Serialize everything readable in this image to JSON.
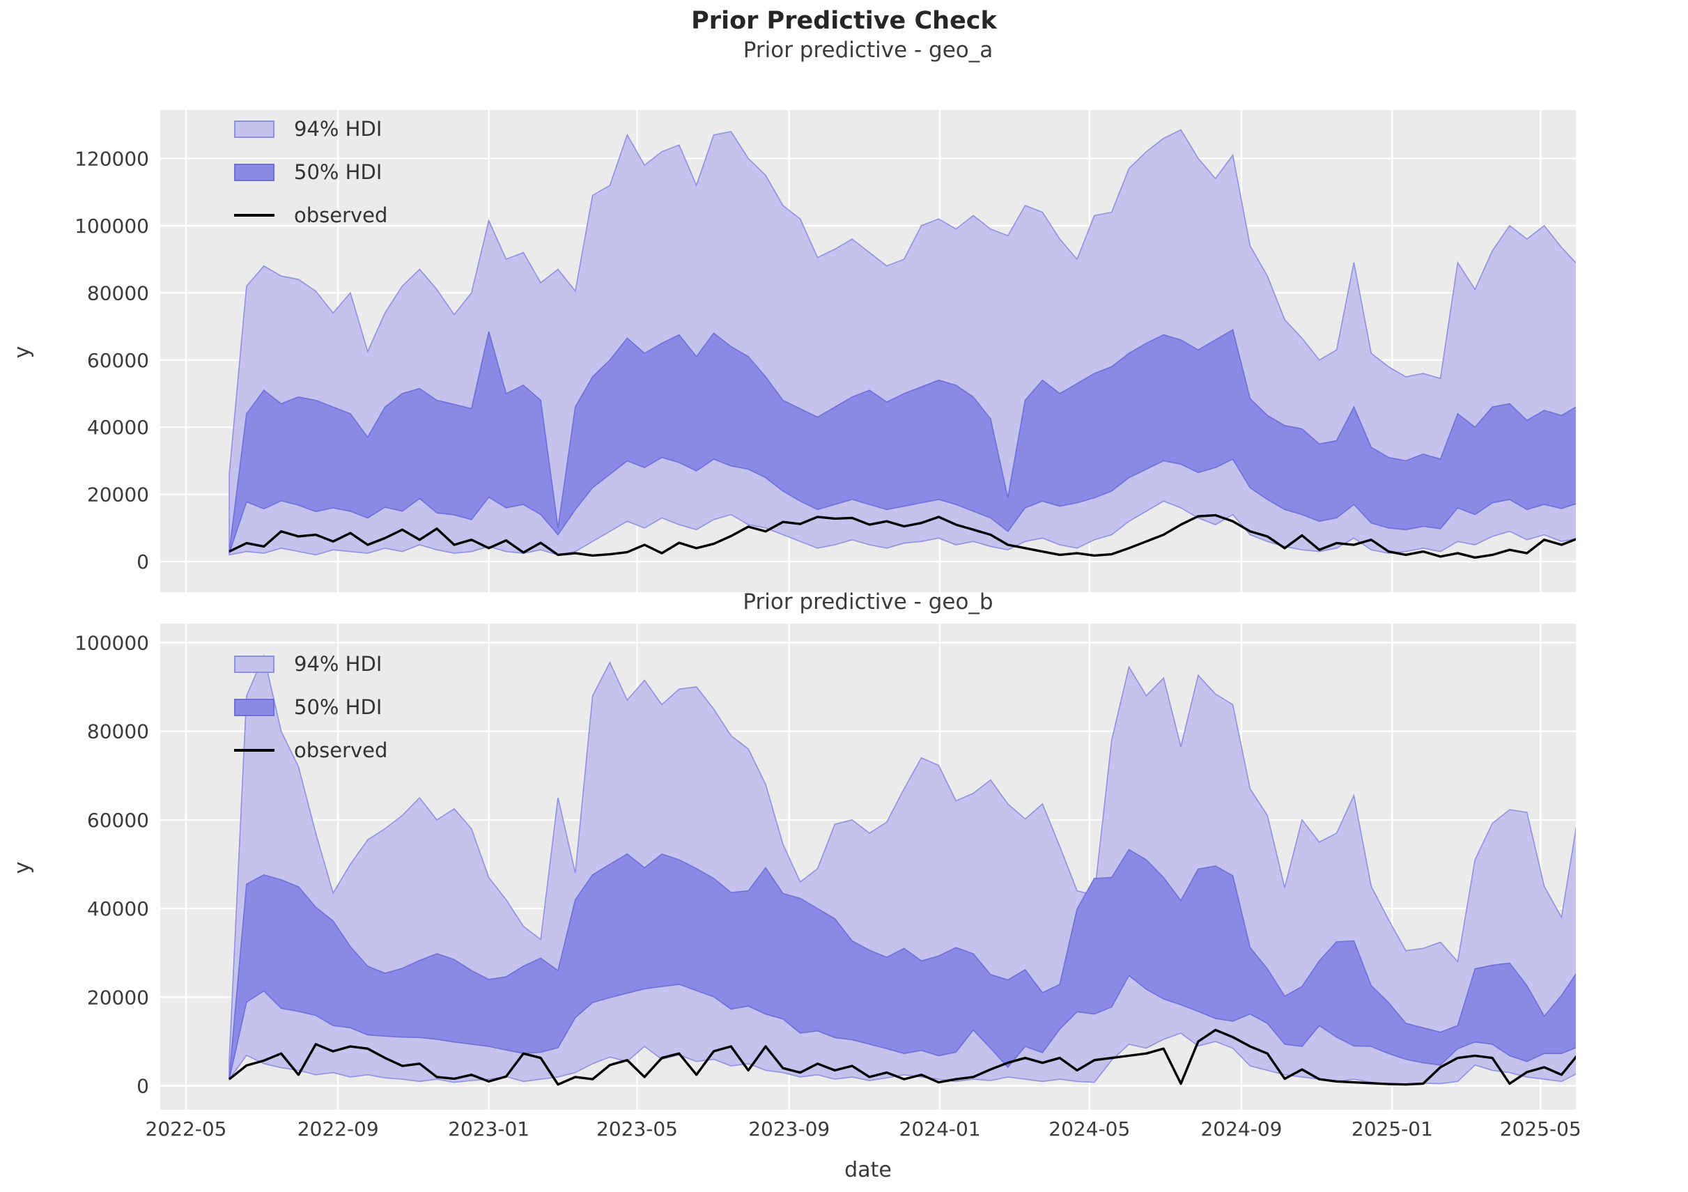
{
  "title": "Prior Predictive Check",
  "colors": {
    "hdi94_fill": "#c3c3ee",
    "hdi94_edge": "#9191e0",
    "hdi50_fill": "#8a8ae6",
    "hdi50_edge": "#6f6fd8",
    "observed": "#000000",
    "plot_bg": "#ebebeb",
    "grid": "#ffffff",
    "tick_text": "#3a3a3a"
  },
  "legend": {
    "hdi94": "94% HDI",
    "hdi50": "50% HDI",
    "observed": "observed"
  },
  "xlabel": "date",
  "ylabel": "y",
  "chart_data": [
    {
      "type": "area",
      "title": "Prior predictive - geo_a",
      "ylabel": "y",
      "xlabel": "",
      "legend": [
        "94% HDI",
        "50% HDI",
        "observed"
      ],
      "legend_position": "upper left",
      "grid": true,
      "ylim": [
        -9100,
        134400
      ],
      "yticks": [
        0,
        20000,
        40000,
        60000,
        80000,
        100000,
        120000
      ],
      "xticks": [
        {
          "label": "2022-05",
          "date": "2022-05-01"
        },
        {
          "label": "2022-09",
          "date": "2022-09-01"
        },
        {
          "label": "2023-01",
          "date": "2023-01-01"
        },
        {
          "label": "2023-05",
          "date": "2023-05-01"
        },
        {
          "label": "2023-09",
          "date": "2023-09-01"
        },
        {
          "label": "2024-01",
          "date": "2024-01-01"
        },
        {
          "label": "2024-05",
          "date": "2024-05-01"
        },
        {
          "label": "2024-09",
          "date": "2024-09-01"
        },
        {
          "label": "2025-01",
          "date": "2025-01-01"
        },
        {
          "label": "2025-05",
          "date": "2025-05-01"
        }
      ],
      "show_xtick_labels": false,
      "x": [
        "2022-06-05",
        "2022-06-19",
        "2022-07-03",
        "2022-07-17",
        "2022-07-31",
        "2022-08-14",
        "2022-08-28",
        "2022-09-11",
        "2022-09-25",
        "2022-10-09",
        "2022-10-23",
        "2022-11-06",
        "2022-11-20",
        "2022-12-04",
        "2022-12-18",
        "2023-01-01",
        "2023-01-15",
        "2023-01-29",
        "2023-02-12",
        "2023-02-26",
        "2023-03-12",
        "2023-03-26",
        "2023-04-09",
        "2023-04-23",
        "2023-05-07",
        "2023-05-21",
        "2023-06-04",
        "2023-06-18",
        "2023-07-02",
        "2023-07-16",
        "2023-07-30",
        "2023-08-13",
        "2023-08-27",
        "2023-09-10",
        "2023-09-24",
        "2023-10-08",
        "2023-10-22",
        "2023-11-05",
        "2023-11-19",
        "2023-12-03",
        "2023-12-17",
        "2023-12-31",
        "2024-01-14",
        "2024-01-28",
        "2024-02-11",
        "2024-02-25",
        "2024-03-10",
        "2024-03-24",
        "2024-04-07",
        "2024-04-21",
        "2024-05-05",
        "2024-05-19",
        "2024-06-02",
        "2024-06-16",
        "2024-06-30",
        "2024-07-14",
        "2024-07-28",
        "2024-08-11",
        "2024-08-25",
        "2024-09-08",
        "2024-09-22",
        "2024-10-06",
        "2024-10-20",
        "2024-11-03",
        "2024-11-17",
        "2024-12-01",
        "2024-12-15",
        "2024-12-29",
        "2025-01-12",
        "2025-01-26",
        "2025-02-09",
        "2025-02-23",
        "2025-03-09",
        "2025-03-23",
        "2025-04-06",
        "2025-04-20",
        "2025-05-04",
        "2025-05-18",
        "2025-06-01"
      ],
      "hdi94_hi": [
        26000,
        82000,
        88000,
        85000,
        84000,
        80500,
        74000,
        80000,
        62500,
        74000,
        82000,
        87000,
        81000,
        73500,
        80000,
        101500,
        90000,
        92000,
        83000,
        87000,
        80500,
        109000,
        112000,
        127000,
        118000,
        122000,
        124000,
        112000,
        127000,
        128000,
        120000,
        115000,
        106000,
        102000,
        90500,
        93000,
        96000,
        92000,
        88000,
        90000,
        100000,
        102000,
        99000,
        103000,
        99000,
        97000,
        106000,
        104000,
        96000,
        90000,
        103000,
        104000,
        117000,
        122000,
        126000,
        128500,
        120000,
        114000,
        121000,
        94000,
        85000,
        72000,
        66500,
        60000,
        63000,
        89000,
        62000,
        58000,
        55000,
        56000,
        54500,
        89000,
        81000,
        92500,
        100000,
        96000,
        100000,
        93500,
        88000
      ],
      "hdi94_lo": [
        2000,
        3000,
        2500,
        4000,
        3000,
        2000,
        3500,
        3000,
        2500,
        4000,
        3000,
        5000,
        3500,
        2500,
        3000,
        4500,
        3000,
        2500,
        3500,
        2000,
        3000,
        6000,
        9000,
        12000,
        10000,
        13000,
        11000,
        9500,
        12500,
        14000,
        11000,
        10000,
        8000,
        6000,
        4000,
        5000,
        6500,
        5000,
        4000,
        5500,
        6000,
        7000,
        5000,
        6000,
        4500,
        3500,
        6000,
        7000,
        5000,
        4000,
        6500,
        8000,
        12000,
        15000,
        18000,
        16000,
        13000,
        11000,
        14000,
        8000,
        6000,
        4500,
        3500,
        3000,
        4000,
        7000,
        3500,
        2500,
        3000,
        4000,
        3000,
        6000,
        5000,
        7500,
        9000,
        6500,
        8000,
        6000,
        7000
      ],
      "hdi50_hi": [
        3000,
        44000,
        51000,
        47000,
        49000,
        48000,
        46000,
        44000,
        37000,
        46000,
        50000,
        51500,
        48000,
        46800,
        45500,
        68500,
        50000,
        52500,
        48000,
        10000,
        46000,
        55000,
        60000,
        66500,
        62000,
        65000,
        67500,
        61000,
        68000,
        64000,
        61000,
        55000,
        48000,
        45500,
        43000,
        46000,
        49000,
        51000,
        47500,
        50000,
        52000,
        54000,
        52500,
        49000,
        42500,
        19000,
        48000,
        54000,
        50000,
        53000,
        56000,
        58000,
        62000,
        65000,
        67500,
        66000,
        63000,
        66000,
        69000,
        48500,
        43500,
        40500,
        39500,
        35000,
        36000,
        46000,
        34000,
        31000,
        30000,
        32000,
        30500,
        44000,
        40000,
        46000,
        47000,
        42000,
        45000,
        43500,
        46500
      ],
      "hdi50_lo": [
        2500,
        17800,
        15700,
        18100,
        16800,
        14900,
        16000,
        15000,
        13000,
        16200,
        15000,
        18800,
        14500,
        13900,
        12500,
        19200,
        16000,
        17000,
        14000,
        8000,
        15500,
        22000,
        26000,
        30000,
        28000,
        31000,
        29500,
        27000,
        30500,
        28500,
        27500,
        25000,
        21000,
        18000,
        15500,
        17000,
        18500,
        17000,
        15500,
        16500,
        17500,
        18500,
        17000,
        15000,
        13000,
        9000,
        16000,
        18000,
        16500,
        17500,
        19000,
        21000,
        25000,
        27500,
        30000,
        29000,
        26500,
        28000,
        30500,
        22000,
        18500,
        15500,
        14000,
        12000,
        13000,
        17000,
        11500,
        10000,
        9500,
        10500,
        9800,
        16000,
        14000,
        17500,
        18500,
        15500,
        17000,
        15800,
        17500
      ],
      "observed": [
        3000,
        5500,
        4500,
        9000,
        7500,
        8000,
        6000,
        8500,
        5000,
        7000,
        9500,
        6500,
        9800,
        5000,
        6500,
        4000,
        6300,
        2700,
        5600,
        2000,
        2500,
        1800,
        2200,
        2800,
        5000,
        2500,
        5600,
        4000,
        5300,
        7600,
        10400,
        9000,
        11800,
        11200,
        13300,
        12800,
        13000,
        11000,
        12000,
        10500,
        11500,
        13300,
        11000,
        9500,
        8000,
        5000,
        4000,
        3000,
        2000,
        2500,
        1800,
        2200,
        4000,
        6000,
        8000,
        11000,
        13500,
        13800,
        12000,
        9000,
        7500,
        4000,
        7800,
        3500,
        5500,
        5000,
        6500,
        3000,
        2000,
        3000,
        1500,
        2500,
        1200,
        2000,
        3500,
        2500,
        6500,
        5000,
        7000
      ]
    },
    {
      "type": "area",
      "title": "Prior predictive - geo_b",
      "ylabel": "y",
      "xlabel": "date",
      "legend": [
        "94% HDI",
        "50% HDI",
        "observed"
      ],
      "legend_position": "upper left",
      "grid": true,
      "ylim": [
        -5400,
        104300
      ],
      "yticks": [
        0,
        20000,
        40000,
        60000,
        80000,
        100000
      ],
      "xticks": [
        {
          "label": "2022-05",
          "date": "2022-05-01"
        },
        {
          "label": "2022-09",
          "date": "2022-09-01"
        },
        {
          "label": "2023-01",
          "date": "2023-01-01"
        },
        {
          "label": "2023-05",
          "date": "2023-05-01"
        },
        {
          "label": "2023-09",
          "date": "2023-09-01"
        },
        {
          "label": "2024-01",
          "date": "2024-01-01"
        },
        {
          "label": "2024-05",
          "date": "2024-05-01"
        },
        {
          "label": "2024-09",
          "date": "2024-09-01"
        },
        {
          "label": "2025-01",
          "date": "2025-01-01"
        },
        {
          "label": "2025-05",
          "date": "2025-05-01"
        }
      ],
      "show_xtick_labels": true,
      "x": [
        "2022-06-05",
        "2022-06-19",
        "2022-07-03",
        "2022-07-17",
        "2022-07-31",
        "2022-08-14",
        "2022-08-28",
        "2022-09-11",
        "2022-09-25",
        "2022-10-09",
        "2022-10-23",
        "2022-11-06",
        "2022-11-20",
        "2022-12-04",
        "2022-12-18",
        "2023-01-01",
        "2023-01-15",
        "2023-01-29",
        "2023-02-12",
        "2023-02-26",
        "2023-03-12",
        "2023-03-26",
        "2023-04-09",
        "2023-04-23",
        "2023-05-07",
        "2023-05-21",
        "2023-06-04",
        "2023-06-18",
        "2023-07-02",
        "2023-07-16",
        "2023-07-30",
        "2023-08-13",
        "2023-08-27",
        "2023-09-10",
        "2023-09-24",
        "2023-10-08",
        "2023-10-22",
        "2023-11-05",
        "2023-11-19",
        "2023-12-03",
        "2023-12-17",
        "2023-12-31",
        "2024-01-14",
        "2024-01-28",
        "2024-02-11",
        "2024-02-25",
        "2024-03-10",
        "2024-03-24",
        "2024-04-07",
        "2024-04-21",
        "2024-05-05",
        "2024-05-19",
        "2024-06-02",
        "2024-06-16",
        "2024-06-30",
        "2024-07-14",
        "2024-07-28",
        "2024-08-11",
        "2024-08-25",
        "2024-09-08",
        "2024-09-22",
        "2024-10-06",
        "2024-10-20",
        "2024-11-03",
        "2024-11-17",
        "2024-12-01",
        "2024-12-15",
        "2024-12-29",
        "2025-01-12",
        "2025-01-26",
        "2025-02-09",
        "2025-02-23",
        "2025-03-09",
        "2025-03-23",
        "2025-04-06",
        "2025-04-20",
        "2025-05-04",
        "2025-05-18",
        "2025-06-01"
      ],
      "hdi94_hi": [
        6000,
        88000,
        97000,
        80000,
        72000,
        57000,
        43500,
        50000,
        55500,
        58000,
        61000,
        65000,
        60000,
        62500,
        58000,
        47000,
        42000,
        36000,
        33000,
        65000,
        48000,
        88000,
        95500,
        87000,
        91500,
        86000,
        89500,
        90000,
        85000,
        79000,
        76000,
        68000,
        54500,
        46000,
        49000,
        59000,
        60000,
        57000,
        59500,
        67000,
        74000,
        72300,
        64300,
        66000,
        69000,
        63600,
        60200,
        63600,
        54000,
        44000,
        43000,
        78000,
        94500,
        88000,
        92000,
        76500,
        92600,
        88400,
        86000,
        67000,
        61000,
        44700,
        60000,
        55000,
        57000,
        65500,
        45000,
        37500,
        30500,
        31000,
        32400,
        28000,
        51000,
        59200,
        62300,
        61700,
        45000,
        38000,
        62000
      ],
      "hdi94_lo": [
        1500,
        6900,
        5000,
        4100,
        3500,
        2500,
        3000,
        2000,
        2500,
        1800,
        1500,
        1000,
        1500,
        800,
        1200,
        1500,
        2100,
        1000,
        1500,
        2000,
        3000,
        5000,
        6500,
        5500,
        8900,
        6000,
        7000,
        5500,
        6000,
        4500,
        5000,
        3500,
        3000,
        2000,
        2500,
        1500,
        2000,
        1200,
        1800,
        2500,
        2000,
        1500,
        1000,
        1500,
        1200,
        2000,
        1500,
        1000,
        1500,
        1000,
        800,
        5800,
        9400,
        8500,
        10500,
        11900,
        9000,
        10000,
        8500,
        4500,
        3500,
        2500,
        2000,
        1500,
        1000,
        1500,
        800,
        500,
        400,
        600,
        500,
        1000,
        4700,
        3500,
        3000,
        2000,
        1500,
        1000,
        3000
      ],
      "hdi50_hi": [
        2000,
        45500,
        47600,
        46500,
        44900,
        40300,
        37200,
        31400,
        27000,
        25400,
        26500,
        28300,
        29800,
        28500,
        26000,
        24000,
        24600,
        27000,
        28800,
        26000,
        42000,
        47600,
        50000,
        52300,
        49200,
        52300,
        51000,
        49000,
        46800,
        43600,
        44000,
        49200,
        43400,
        42300,
        40000,
        37700,
        32700,
        30600,
        29000,
        31000,
        28200,
        29300,
        31200,
        29800,
        25100,
        23900,
        26200,
        21000,
        22900,
        39900,
        46800,
        47000,
        53300,
        51000,
        47000,
        41800,
        48900,
        49600,
        47400,
        31200,
        26400,
        20200,
        22400,
        28200,
        32500,
        32700,
        22600,
        18800,
        14100,
        13100,
        12100,
        13600,
        26400,
        27200,
        27700,
        22600,
        15700,
        20400,
        26200
      ],
      "hdi50_lo": [
        1500,
        18900,
        21400,
        17500,
        16800,
        15900,
        13600,
        13100,
        11500,
        11200,
        11000,
        10900,
        10500,
        9900,
        9400,
        8900,
        8100,
        7300,
        7600,
        8600,
        15400,
        18800,
        19900,
        20900,
        21900,
        22400,
        22900,
        21500,
        20100,
        17300,
        18000,
        16200,
        15100,
        11900,
        12400,
        10900,
        10400,
        9400,
        8400,
        7300,
        8000,
        6800,
        7600,
        12600,
        8500,
        4200,
        8900,
        7500,
        12800,
        16700,
        16200,
        17800,
        24900,
        21800,
        19600,
        18300,
        16800,
        15200,
        14600,
        16200,
        14100,
        9400,
        8900,
        13600,
        11000,
        9000,
        8900,
        7300,
        6000,
        5200,
        4700,
        8400,
        9900,
        9400,
        6800,
        5500,
        7300,
        7300,
        8900
      ],
      "observed": [
        1500,
        4600,
        5700,
        7300,
        2500,
        9400,
        7800,
        8900,
        8400,
        6300,
        4500,
        5000,
        2000,
        1600,
        2500,
        1000,
        2100,
        7300,
        6300,
        300,
        2000,
        1500,
        4700,
        5800,
        2000,
        6300,
        7300,
        2500,
        7800,
        8900,
        3500,
        8900,
        4000,
        3000,
        5000,
        3500,
        4500,
        2000,
        3000,
        1500,
        2500,
        800,
        1500,
        2000,
        3700,
        5200,
        6300,
        5200,
        6300,
        3500,
        5800,
        6300,
        6800,
        7300,
        8400,
        500,
        10000,
        12600,
        11000,
        8900,
        7300,
        1600,
        3700,
        1500,
        1000,
        800,
        600,
        400,
        300,
        500,
        4200,
        6300,
        6800,
        6300,
        500,
        3100,
        4200,
        2500,
        7300
      ]
    }
  ]
}
